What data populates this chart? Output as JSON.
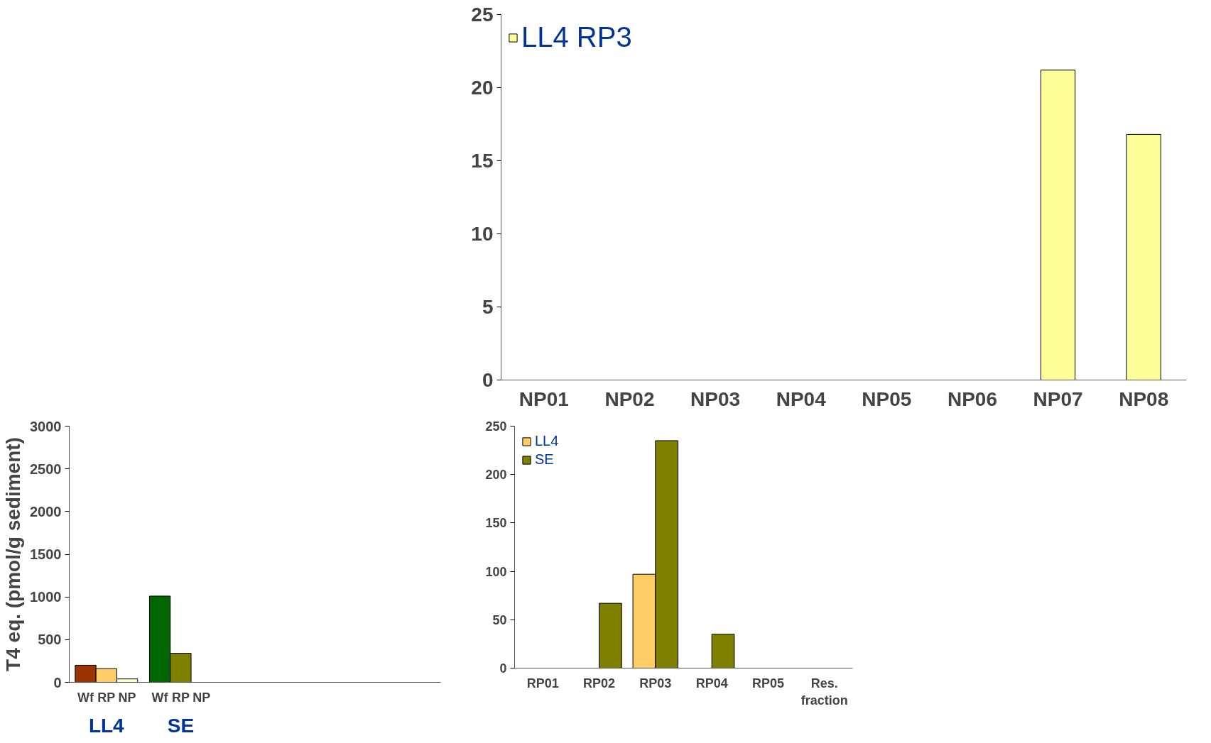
{
  "chart_data": [
    {
      "type": "bar",
      "ylabel": "T4 eq. (pmol/g sediment)",
      "categories": [
        "LL4",
        "SE",
        null,
        null,
        null
      ],
      "ylim": [
        0,
        3000
      ],
      "yticks": [
        0,
        500,
        1000,
        1500,
        2000,
        2500,
        3000
      ],
      "grid": false,
      "legend": false,
      "series": [
        {
          "name": "Wf",
          "colors": [
            "#993300",
            "#006600",
            "#993300",
            "#993300",
            "#993300"
          ],
          "values": [
            200,
            1010,
            null,
            null,
            null
          ]
        },
        {
          "name": "RP",
          "colors": [
            "#ffcc66",
            "#808000",
            "#ffcc66",
            "#ffcc66",
            "#ffcc66"
          ],
          "values": [
            160,
            340,
            null,
            null,
            null
          ]
        },
        {
          "name": "NP",
          "colors": [
            "#ffffcc",
            "#ffffcc",
            "#ffffcc",
            "#ffffcc",
            "#ffffcc"
          ],
          "values": [
            40,
            null,
            null,
            null,
            null
          ]
        }
      ]
    },
    {
      "type": "bar",
      "categories": [
        "RP01",
        "RP02",
        "RP03",
        "RP04",
        "RP05",
        "Res.\nfraction"
      ],
      "ylim": [
        0,
        250
      ],
      "yticks": [
        0,
        50,
        100,
        150,
        200,
        250
      ],
      "grid": false,
      "legend": "top left",
      "series": [
        {
          "name": "LL4",
          "color": "#ffcc66",
          "values": [
            null,
            null,
            97,
            null,
            null,
            null
          ]
        },
        {
          "name": "SE",
          "color": "#808000",
          "values": [
            null,
            67,
            235,
            35,
            null,
            null
          ]
        }
      ]
    },
    {
      "type": "bar",
      "categories": [
        "NP01",
        "NP02",
        "NP03",
        "NP04",
        "NP05",
        "NP06",
        "NP07",
        "NP08"
      ],
      "ylim": [
        0,
        25
      ],
      "yticks": [
        0,
        5,
        10,
        15,
        20,
        25
      ],
      "grid": false,
      "legend": "top left",
      "series": [
        {
          "name": "LL4 RP3",
          "color": "#ffff99",
          "values": [
            null,
            null,
            null,
            null,
            null,
            null,
            21.2,
            16.8
          ]
        }
      ]
    }
  ]
}
